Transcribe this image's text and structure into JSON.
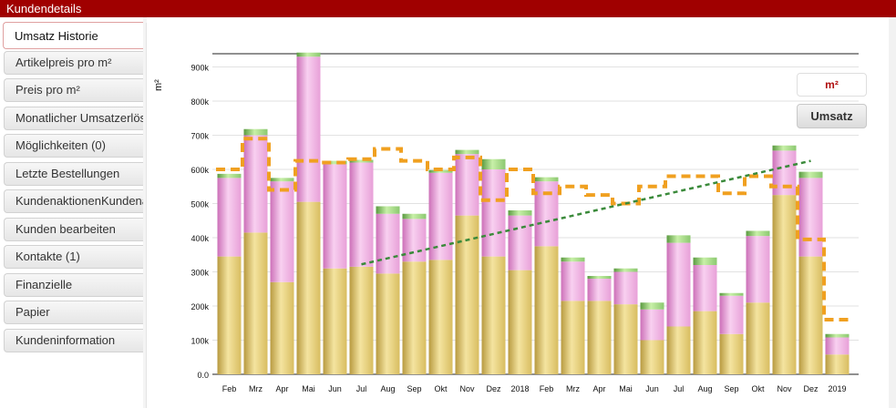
{
  "window": {
    "title": "Kundendetails"
  },
  "sidebar": {
    "tabs": [
      {
        "label": "Umsatz Historie",
        "active": true
      },
      {
        "label": "Artikelpreis pro m²"
      },
      {
        "label": "Preis pro m²"
      },
      {
        "label": "Monatlicher Umsatzerlös"
      },
      {
        "label": "Möglichkeiten (0)"
      },
      {
        "label": "Letzte Bestellungen"
      },
      {
        "label": "KundenaktionenKundenaktionen"
      },
      {
        "label": "Kunden bearbeiten"
      },
      {
        "label": "Kontakte (1)"
      },
      {
        "label": "Finanzielle"
      },
      {
        "label": "Papier"
      },
      {
        "label": "Kundeninformation"
      }
    ]
  },
  "controls": {
    "m2_label": "m²",
    "umsatz_label": "Umsatz"
  },
  "colors": {
    "header": "#a00000",
    "bar_base": "#d8bd60",
    "bar_mid": "#e8a0d8",
    "bar_top": "#8cc870",
    "avg_line": "#f0a020",
    "trend_line": "#3a8a3a"
  },
  "chart_data": {
    "type": "bar",
    "ylabel": "m²",
    "ylim": [
      0,
      950000
    ],
    "yticks": [
      "0.0",
      "100k",
      "200k",
      "300k",
      "400k",
      "500k",
      "600k",
      "700k",
      "800k",
      "900k"
    ],
    "categories": [
      "Feb",
      "Mrz",
      "Apr",
      "Mai",
      "Jun",
      "Jul",
      "Aug",
      "Sep",
      "Okt",
      "Nov",
      "Dez",
      "2018",
      "Feb",
      "Mrz",
      "Apr",
      "Mai",
      "Jun",
      "Jul",
      "Aug",
      "Sep",
      "Okt",
      "Nov",
      "Dez",
      "2019"
    ],
    "series": [
      {
        "values": [
          345000,
          415000,
          270000,
          505000,
          310000,
          315000,
          295000,
          330000,
          335000,
          465000,
          345000,
          305000,
          375000,
          215000,
          215000,
          205000,
          100000,
          140000,
          185000,
          118000,
          210000,
          525000,
          345000,
          58000
        ]
      },
      {
        "values": [
          230000,
          285000,
          295000,
          425000,
          305000,
          305000,
          175000,
          125000,
          255000,
          180000,
          255000,
          160000,
          190000,
          115000,
          65000,
          95000,
          90000,
          245000,
          135000,
          112000,
          195000,
          130000,
          230000,
          50000
        ]
      },
      {
        "values": [
          12000,
          18000,
          10000,
          12000,
          10000,
          8000,
          22000,
          15000,
          8000,
          12000,
          30000,
          15000,
          12000,
          12000,
          8000,
          10000,
          20000,
          22000,
          22000,
          8000,
          15000,
          15000,
          18000,
          10000
        ]
      }
    ],
    "average_line": [
      600000,
      690000,
      540000,
      625000,
      620000,
      630000,
      660000,
      625000,
      600000,
      635000,
      510000,
      600000,
      530000,
      550000,
      525000,
      500000,
      550000,
      580000,
      580000,
      530000,
      580000,
      550000,
      395000,
      160000
    ],
    "trend_line": {
      "from": {
        "x": "Jul",
        "y": 322000
      },
      "to": {
        "x": "Dez",
        "y": 625000
      }
    }
  }
}
